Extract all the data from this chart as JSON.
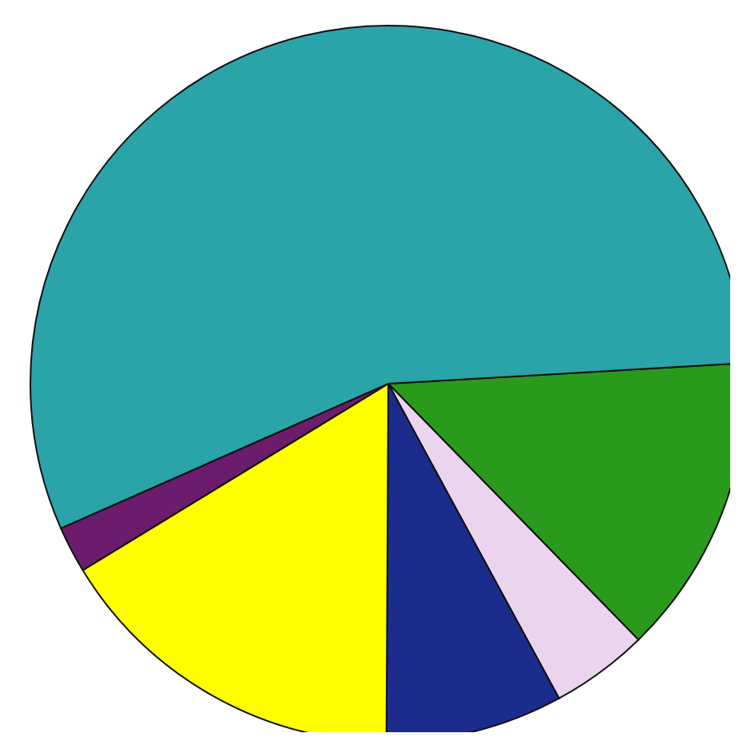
{
  "chart_data": {
    "type": "pie",
    "categories": [
      null,
      null,
      null,
      null,
      null,
      null
    ],
    "values": [
      13.6,
      4.4,
      8.0,
      16.2,
      2.1,
      55.7
    ],
    "colors": [
      "#2a9a1c",
      "#ead4ee",
      "#1c2c8c",
      "#ffff00",
      "#6c1c6c",
      "#2aa4a8"
    ]
  }
}
